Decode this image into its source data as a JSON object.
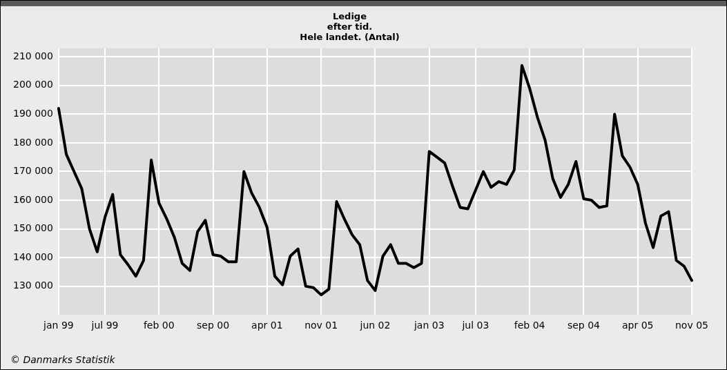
{
  "chart_data": {
    "type": "line",
    "title": "Ledige\nefter tid.\nHele landet. (Antal)",
    "categories": [
      "jan 99",
      null,
      null,
      null,
      null,
      null,
      "jul 99",
      null,
      null,
      null,
      null,
      null,
      null,
      "feb 00",
      null,
      null,
      null,
      null,
      null,
      null,
      "sep 00",
      null,
      null,
      null,
      null,
      null,
      null,
      "apr 01",
      null,
      null,
      null,
      null,
      null,
      null,
      "nov 01",
      null,
      null,
      null,
      null,
      null,
      null,
      "jun 02",
      null,
      null,
      null,
      null,
      null,
      null,
      "jan 03",
      null,
      null,
      null,
      null,
      null,
      "jul 03",
      null,
      null,
      null,
      null,
      null,
      null,
      "feb 04",
      null,
      null,
      null,
      null,
      null,
      null,
      "sep 04",
      null,
      null,
      null,
      null,
      null,
      null,
      "apr 05",
      null,
      null,
      null,
      null,
      null,
      null,
      "nov 05"
    ],
    "series": [
      {
        "color": "#000000",
        "values": [
          192000,
          176000,
          170000,
          164000,
          150000,
          142000,
          154000,
          162000,
          141000,
          137500,
          133500,
          139000,
          174000,
          159000,
          153500,
          147000,
          138000,
          135500,
          149000,
          153000,
          141000,
          140500,
          138500,
          138500,
          170000,
          162500,
          157500,
          150500,
          133500,
          130500,
          140500,
          143000,
          130000,
          129500,
          127000,
          129000,
          159500,
          153500,
          148000,
          144500,
          132000,
          128500,
          140500,
          144500,
          138000,
          138000,
          136500,
          138000,
          177000,
          175000,
          173000,
          165000,
          157500,
          157000,
          163500,
          170000,
          164500,
          166500,
          165500,
          170500,
          207000,
          199000,
          189000,
          181000,
          167500,
          161000,
          165500,
          173500,
          160500,
          160000,
          157500,
          158000,
          190000,
          175500,
          171500,
          165500,
          152000,
          143500,
          154500,
          156000,
          139000,
          137000,
          132000
        ]
      }
    ],
    "ylim": [
      120000,
      213000
    ],
    "yticks": [
      {
        "value": 130000,
        "label": "130 000"
      },
      {
        "value": 140000,
        "label": "140 000"
      },
      {
        "value": 150000,
        "label": "150 000"
      },
      {
        "value": 160000,
        "label": "160 000"
      },
      {
        "value": 170000,
        "label": "170 000"
      },
      {
        "value": 180000,
        "label": "180 000"
      },
      {
        "value": 190000,
        "label": "190 000"
      },
      {
        "value": 200000,
        "label": "200 000"
      },
      {
        "value": 210000,
        "label": "210 000"
      }
    ],
    "grid": true,
    "legend": false,
    "marker": "none",
    "line_style": "solid",
    "annotations": [
      "© Danmarks Statistik"
    ]
  }
}
